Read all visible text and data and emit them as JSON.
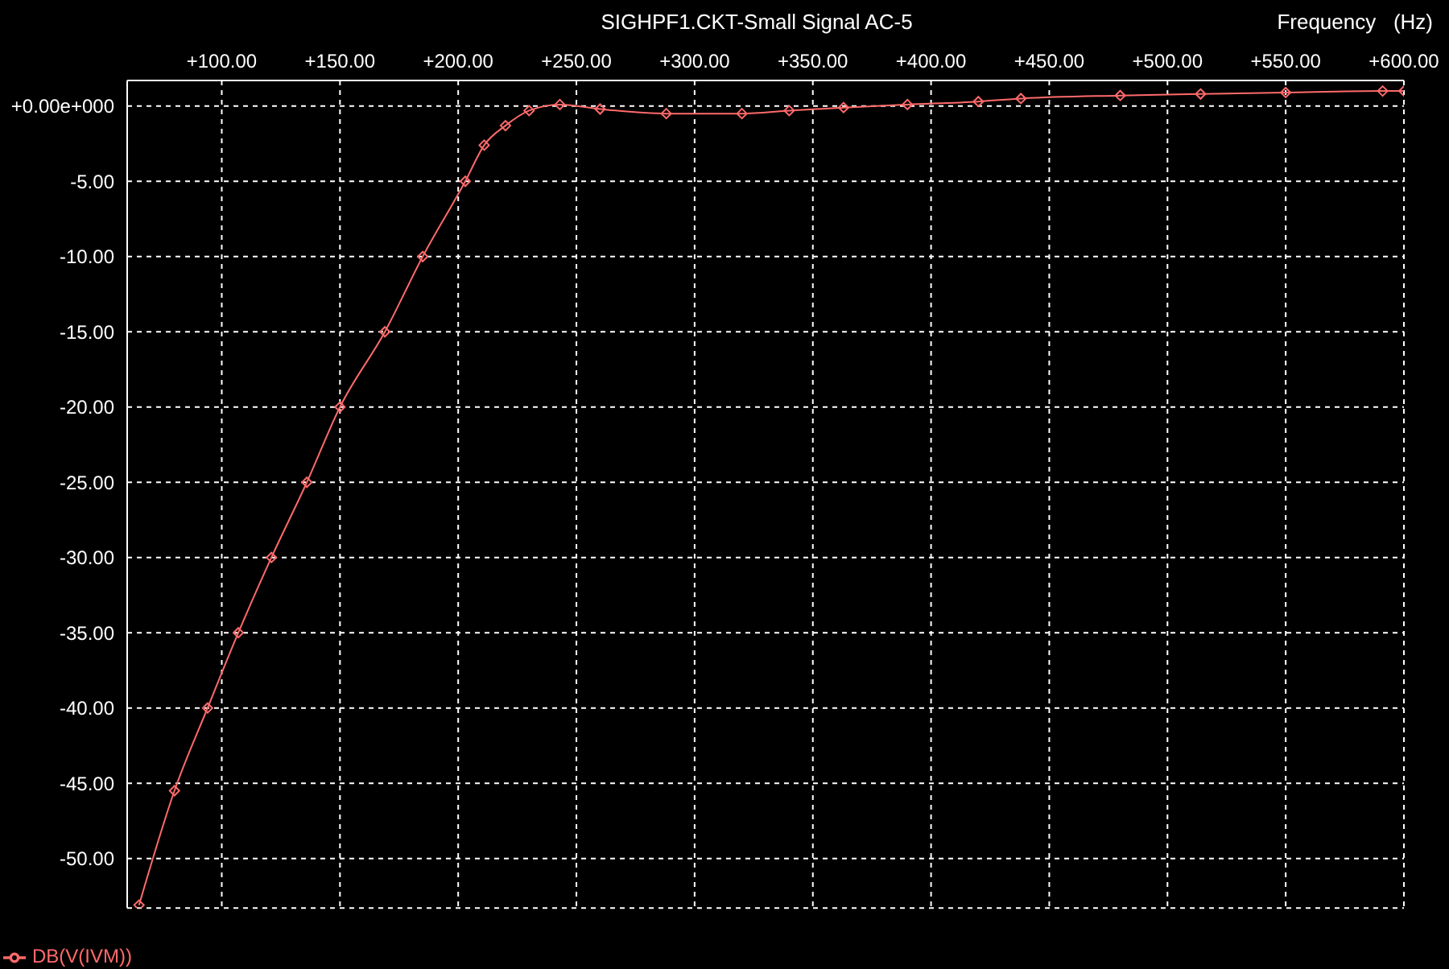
{
  "chart_data": {
    "type": "line",
    "title": "SIGHPF1.CKT-Small Signal AC-5",
    "xlabel": "Frequency   (Hz)",
    "xlim": [
      60,
      600
    ],
    "xticks": [
      {
        "value": 100,
        "label": "+100.00"
      },
      {
        "value": 150,
        "label": "+150.00"
      },
      {
        "value": 200,
        "label": "+200.00"
      },
      {
        "value": 250,
        "label": "+250.00"
      },
      {
        "value": 300,
        "label": "+300.00"
      },
      {
        "value": 350,
        "label": "+350.00"
      },
      {
        "value": 400,
        "label": "+400.00"
      },
      {
        "value": 450,
        "label": "+450.00"
      },
      {
        "value": 500,
        "label": "+500.00"
      },
      {
        "value": 550,
        "label": "+550.00"
      },
      {
        "value": 600,
        "label": "+600.00"
      }
    ],
    "ylim": [
      -53.3,
      1.7
    ],
    "yticks": [
      {
        "value": 0,
        "label": "+0.00e+000"
      },
      {
        "value": -5,
        "label": "-5.00"
      },
      {
        "value": -10,
        "label": "-10.00"
      },
      {
        "value": -15,
        "label": "-15.00"
      },
      {
        "value": -20,
        "label": "-20.00"
      },
      {
        "value": -25,
        "label": "-25.00"
      },
      {
        "value": -30,
        "label": "-30.00"
      },
      {
        "value": -35,
        "label": "-35.00"
      },
      {
        "value": -40,
        "label": "-40.00"
      },
      {
        "value": -45,
        "label": "-45.00"
      },
      {
        "value": -50,
        "label": "-50.00"
      }
    ],
    "grid": true,
    "legend": "bottom left",
    "marker": "diamond",
    "line_style": "solid",
    "series": [
      {
        "name": "DB(V(IVM))",
        "color": "#ff6a6a",
        "x": [
          65,
          80,
          94,
          107,
          121,
          136,
          150,
          169,
          185,
          203,
          211,
          220,
          230,
          243,
          260,
          288,
          320,
          340,
          363,
          390,
          420,
          438,
          480,
          514,
          550,
          591,
          600
        ],
        "values": [
          -53.1,
          -45.5,
          -40,
          -35,
          -30,
          -25,
          -20,
          -15,
          -10,
          -5,
          -2.6,
          -1.3,
          -0.3,
          0.1,
          -0.2,
          -0.5,
          -0.5,
          -0.3,
          -0.1,
          0.1,
          0.3,
          0.5,
          0.7,
          0.8,
          0.9,
          1.0,
          1.0
        ]
      }
    ]
  }
}
